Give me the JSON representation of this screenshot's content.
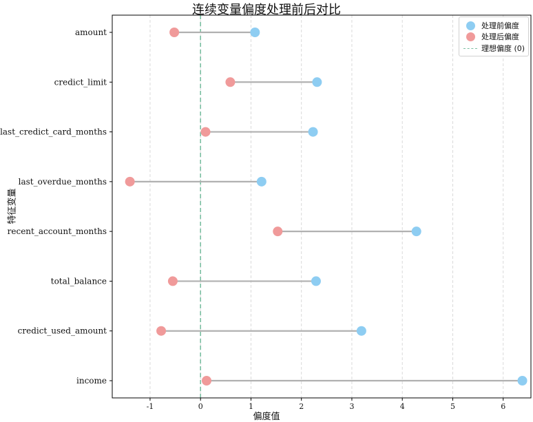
{
  "chart_data": {
    "type": "dumbbell",
    "title": "连续变量偏度处理前后对比",
    "xlabel": "偏度值",
    "ylabel": "特征变量",
    "xlim": [
      -1.75,
      6.55
    ],
    "xticks": [
      -1,
      0,
      1,
      2,
      3,
      4,
      5,
      6
    ],
    "grid": "x-dashed",
    "reference_line": {
      "x": 0,
      "label": "理想偏度 (0)",
      "color": "#7bbfa1"
    },
    "legend_position": "top-right",
    "categories": [
      "amount",
      "credict_limit",
      "last_credict_card_months",
      "last_overdue_months",
      "recent_account_months",
      "total_balance",
      "credict_used_amount",
      "income"
    ],
    "series": [
      {
        "name": "处理前偏度",
        "color": "#8ecdf2",
        "values": [
          1.08,
          2.31,
          2.23,
          1.21,
          4.28,
          2.29,
          3.19,
          6.38
        ]
      },
      {
        "name": "处理后偏度",
        "color": "#f09a9a",
        "values": [
          -0.52,
          0.59,
          0.1,
          -1.4,
          1.53,
          -0.55,
          -0.78,
          0.12
        ]
      }
    ],
    "connector_color": "#b0b0b0"
  }
}
